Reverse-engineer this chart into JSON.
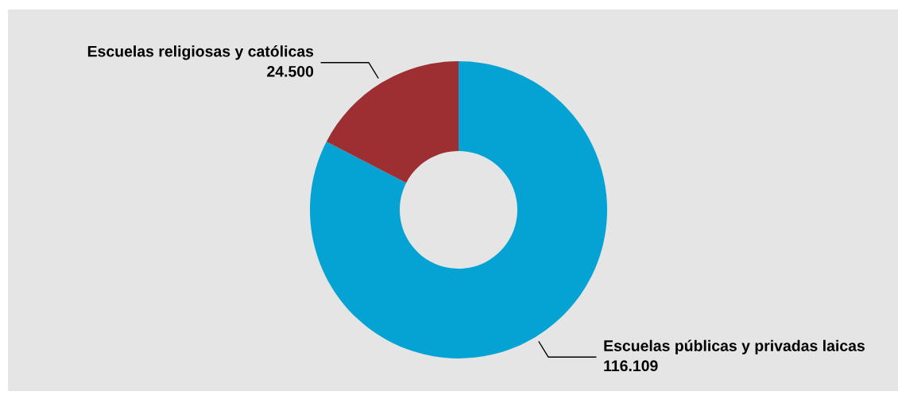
{
  "chart_data": {
    "type": "donut",
    "categories": [
      "Escuelas públicas y privadas laicas",
      "Escuelas religiosas y católicas"
    ],
    "values": [
      116109,
      24500
    ],
    "value_labels": [
      "116.109",
      "24.500"
    ],
    "colors": [
      "#05a3d4",
      "#9d2e31"
    ]
  }
}
